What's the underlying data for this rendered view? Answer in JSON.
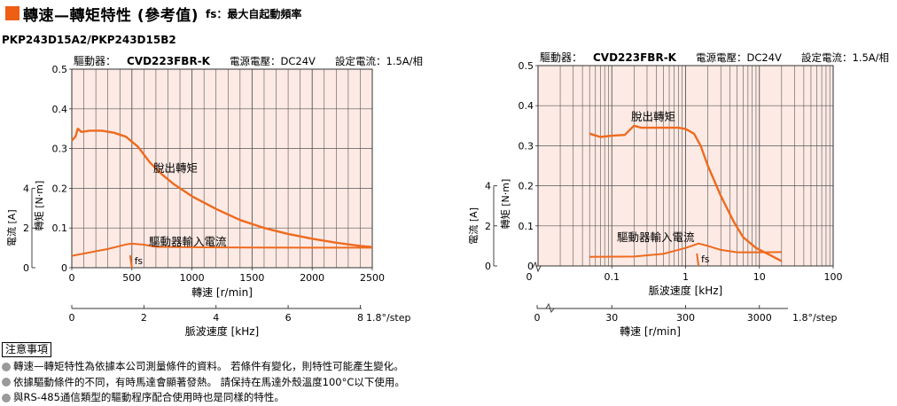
{
  "header": {
    "title": "轉速—轉矩特性 (參考值)",
    "subtitle": "fs：最大自起動頻率",
    "model": "PKP243D15A2/PKP243D15B2"
  },
  "colors": {
    "accent": "#ee5f13",
    "curve": "#ee6a1f",
    "plot_bg": "#fdeae4"
  },
  "notes": {
    "title": "注意事項",
    "items": [
      "轉速—轉矩特性為依據本公司測量條件的資料。 若條件有變化，則特性可能產生變化。",
      "依據驅動條件的不同，有時馬達會顯著發熱。 請保持在馬達外殼溫度100°C以下使用。",
      "與RS-485通信類型的驅動程序配合使用時也是同樣的特性。"
    ]
  },
  "chart_data": [
    {
      "type": "line",
      "header": {
        "driver_label": "驅動器：",
        "driver": "CVD223FBR-K",
        "voltage": "電源電壓：DC24V",
        "current": "設定電流：1.5A/相"
      },
      "x_scale": "linear",
      "xlabel": "轉速 [r/min]",
      "xlim": [
        0,
        2500
      ],
      "x_ticks": [
        0,
        500,
        1000,
        1500,
        2000,
        2500
      ],
      "x2label": "脈波速度 [kHz]",
      "x2_ticks": [
        "0",
        "2",
        "4",
        "6",
        "8"
      ],
      "x2_tick_values": [
        0,
        2,
        4,
        6,
        8
      ],
      "x2_tick_unit_suffix": "1.8°/step",
      "ylabel": "轉矩 [N·m]",
      "ylim": [
        0,
        0.5
      ],
      "y_ticks": [
        "0",
        "0.1",
        "0.2",
        "0.3",
        "0.4",
        "0.5"
      ],
      "y2label": "電流 [A]",
      "y2_ticks": [
        "0",
        "2",
        "4"
      ],
      "y2_tick_values": [
        0,
        2,
        4
      ],
      "grid": true,
      "series": [
        {
          "name": "脫出轉矩",
          "points": [
            [
              0,
              0.32
            ],
            [
              30,
              0.33
            ],
            [
              50,
              0.35
            ],
            [
              80,
              0.342
            ],
            [
              150,
              0.345
            ],
            [
              250,
              0.345
            ],
            [
              350,
              0.34
            ],
            [
              450,
              0.33
            ],
            [
              550,
              0.305
            ],
            [
              650,
              0.265
            ],
            [
              750,
              0.235
            ],
            [
              850,
              0.21
            ],
            [
              1000,
              0.18
            ],
            [
              1200,
              0.148
            ],
            [
              1400,
              0.12
            ],
            [
              1600,
              0.1
            ],
            [
              1800,
              0.085
            ],
            [
              2000,
              0.073
            ],
            [
              2200,
              0.063
            ],
            [
              2400,
              0.055
            ],
            [
              2500,
              0.052
            ]
          ]
        },
        {
          "name": "驅動器輸入電流",
          "points": [
            [
              0,
              0.6
            ],
            [
              300,
              0.94
            ],
            [
              450,
              1.17
            ],
            [
              500,
              1.21
            ],
            [
              600,
              1.16
            ],
            [
              700,
              1.05
            ],
            [
              1000,
              1.03
            ],
            [
              1500,
              1.02
            ],
            [
              2000,
              1.01
            ],
            [
              2500,
              1.01
            ]
          ]
        }
      ],
      "fs_label": "fs",
      "fs_value": 500
    },
    {
      "type": "line",
      "header": {
        "driver_label": "驅動器：",
        "driver": "CVD223FBR-K",
        "voltage": "電源電壓：DC24V",
        "current": "設定電流：1.5A/相"
      },
      "x_scale": "log",
      "xlabel": "脈波速度 [kHz]",
      "xlim": [
        0.01,
        100
      ],
      "x_ticks": [
        "0.1",
        "1",
        "10",
        "100"
      ],
      "x_tick_values": [
        0.1,
        1,
        10,
        100
      ],
      "x2label": "轉速 [r/min]",
      "x2_ticks": [
        "0",
        "30",
        "300",
        "3000"
      ],
      "x2_tick_values": [
        0,
        0.1,
        1,
        10
      ],
      "x2_tick_unit_suffix": "1.8°/step",
      "ylabel": "轉矩 [N·m]",
      "ylim": [
        0,
        0.5
      ],
      "y_ticks": [
        "0",
        "0.1",
        "0.2",
        "0.3",
        "0.4",
        "0.5"
      ],
      "y2label": "電流 [A]",
      "y2_ticks": [
        "0",
        "2",
        "4"
      ],
      "y2_tick_values": [
        0,
        2,
        4
      ],
      "grid": true,
      "series": [
        {
          "name": "脫出轉矩",
          "points": [
            [
              0.05,
              0.33
            ],
            [
              0.07,
              0.322
            ],
            [
              0.1,
              0.325
            ],
            [
              0.15,
              0.327
            ],
            [
              0.2,
              0.35
            ],
            [
              0.25,
              0.345
            ],
            [
              0.4,
              0.345
            ],
            [
              0.8,
              0.345
            ],
            [
              1.0,
              0.342
            ],
            [
              1.3,
              0.33
            ],
            [
              1.6,
              0.3
            ],
            [
              2,
              0.25
            ],
            [
              3,
              0.175
            ],
            [
              4.5,
              0.11
            ],
            [
              6,
              0.072
            ],
            [
              9,
              0.045
            ],
            [
              14,
              0.027
            ],
            [
              20,
              0.012
            ]
          ]
        },
        {
          "name": "驅動器輸入電流",
          "points": [
            [
              0.05,
              0.45
            ],
            [
              0.2,
              0.47
            ],
            [
              0.5,
              0.6
            ],
            [
              1,
              0.9
            ],
            [
              1.5,
              1.12
            ],
            [
              2,
              1.0
            ],
            [
              3,
              0.8
            ],
            [
              5,
              0.68
            ],
            [
              10,
              0.68
            ],
            [
              20,
              0.69
            ]
          ]
        }
      ],
      "fs_label": "fs",
      "fs_value": 1.5
    }
  ]
}
